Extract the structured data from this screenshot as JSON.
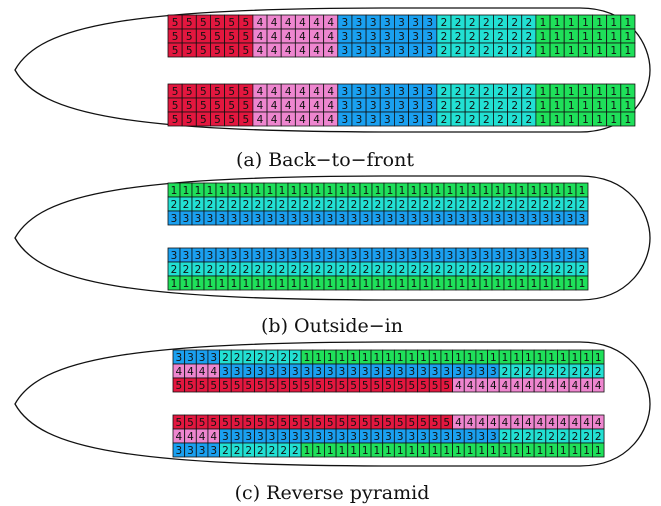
{
  "colors": {
    "1": "#1fe05a",
    "2": "#22e0d3",
    "3": "#1aa0f0",
    "4": "#ee86cf",
    "5": "#e3173f"
  },
  "panels": [
    {
      "caption": "(a) Back−to−front",
      "groups": [
        {
          "rows": [
            "555555444444333333322222221111111",
            "555555444444333333322222221111111",
            "555555444444333333322222221111111"
          ]
        },
        {
          "rows": [
            "555555444444333333322222221111111",
            "555555444444333333322222221111111",
            "555555444444333333322222221111111"
          ]
        }
      ]
    },
    {
      "caption": "(b) Outside−in",
      "groups": [
        {
          "rows": [
            "11111111111111111111111111111111111",
            "22222222222222222222222222222222222",
            "33333333333333333333333333333333333"
          ]
        },
        {
          "rows": [
            "33333333333333333333333333333333333",
            "22222222222222222222222222222222222",
            "11111111111111111111111111111111111"
          ]
        }
      ]
    },
    {
      "caption": "(c) Reverse pyramid",
      "groups": [
        {
          "rows": [
            "3333222222211111111111111111111111111",
            "4444333333333333333333333333222222222",
            "5555555555555555555555554444444444444"
          ]
        },
        {
          "rows": [
            "5555555555555555555555554444444444444",
            "4444333333333333333333333333222222222",
            "3333222222211111111111111111111111111"
          ]
        }
      ]
    }
  ]
}
